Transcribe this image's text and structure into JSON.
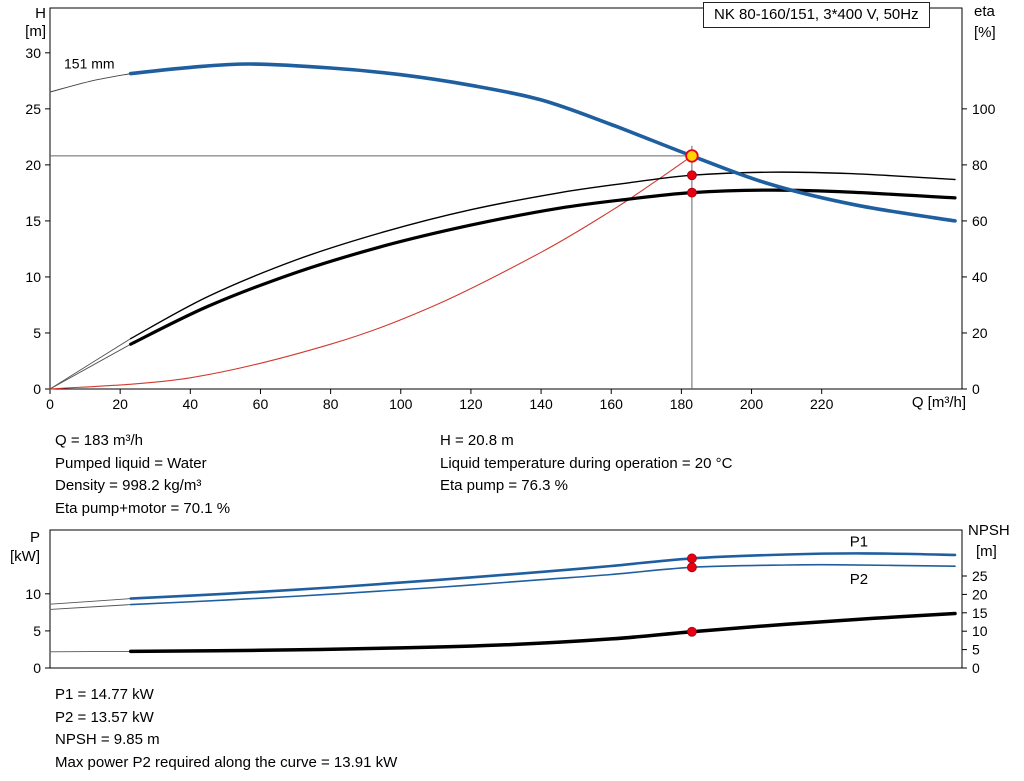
{
  "title": "NK 80-160/151, 3*400 V, 50Hz",
  "results_top": {
    "left": [
      "Q = 183 m³/h",
      "Pumped liquid = Water",
      "Density = 998.2 kg/m³",
      "Eta pump+motor = 70.1 %"
    ],
    "right": [
      "H = 20.8 m",
      "Liquid temperature during operation = 20 °C",
      "Eta pump = 76.3 %"
    ]
  },
  "results_bottom": [
    "P1 = 14.77 kW",
    "P2 = 13.57 kW",
    "NPSH = 9.85 m",
    "Max power P2 required along the curve = 13.91 kW"
  ],
  "operating_point": {
    "Q": 183,
    "H": 20.8,
    "eta_pump": 76.3,
    "eta_pump_motor": 70.1,
    "P1": 14.77,
    "P2": 13.57,
    "NPSH": 9.85
  },
  "chart_data": [
    {
      "id": "qh-eta",
      "type": "line",
      "title": "NK 80-160/151, 3*400 V, 50Hz",
      "x": {
        "label": "Q [m³/h]",
        "min": 0,
        "max": 260,
        "ticks": [
          0,
          20,
          40,
          60,
          80,
          100,
          120,
          140,
          160,
          180,
          200,
          220
        ]
      },
      "y_left": {
        "label_lines": [
          "H",
          "[m]"
        ],
        "min": 0,
        "max": 34,
        "ticks": [
          0,
          5,
          10,
          15,
          20,
          25,
          30
        ]
      },
      "y_right": {
        "label_lines": [
          "eta",
          "[%]"
        ],
        "min": 0,
        "max": 136,
        "ticks": [
          0,
          20,
          40,
          60,
          80,
          100
        ]
      },
      "series": [
        {
          "name": "head-curve-lead",
          "axis": "left",
          "color": "#444444",
          "width": 1,
          "points": [
            [
              0,
              26.5
            ],
            [
              12,
              27.5
            ],
            [
              23,
              28.15
            ]
          ]
        },
        {
          "name": "eta-pump-lead",
          "axis": "right",
          "color": "#555555",
          "width": 0.9,
          "points": [
            [
              0,
              0
            ],
            [
              23,
              18
            ]
          ]
        },
        {
          "name": "eta-pump-motor-lead",
          "axis": "right",
          "color": "#555555",
          "width": 0.9,
          "points": [
            [
              0,
              0
            ],
            [
              23,
              16
            ]
          ]
        },
        {
          "name": "system-curve",
          "axis": "left",
          "color": "#d03a2f",
          "width": 1.1,
          "points": [
            [
              0,
              0
            ],
            [
              40,
              1.0
            ],
            [
              80,
              4.0
            ],
            [
              110,
              7.5
            ],
            [
              140,
              12.2
            ],
            [
              160,
              15.9
            ],
            [
              172,
              18.4
            ],
            [
              183,
              20.8
            ]
          ]
        },
        {
          "name": "eta-pump-curve",
          "axis": "right",
          "color": "#000000",
          "width": 1.4,
          "points": [
            [
              23,
              18
            ],
            [
              45,
              33
            ],
            [
              70,
              46
            ],
            [
              95,
              56
            ],
            [
              120,
              64
            ],
            [
              145,
              70
            ],
            [
              165,
              73.6
            ],
            [
              183,
              76.3
            ],
            [
              205,
              77.4
            ],
            [
              228,
              76.9
            ],
            [
              258,
              74.8
            ]
          ]
        },
        {
          "name": "eta-pump-motor-curve",
          "axis": "right",
          "color": "#000000",
          "width": 3.2,
          "points": [
            [
              23,
              16
            ],
            [
              45,
              29.5
            ],
            [
              70,
              41.5
            ],
            [
              95,
              51
            ],
            [
              120,
              58.5
            ],
            [
              145,
              64.5
            ],
            [
              165,
              67.8
            ],
            [
              183,
              70.1
            ],
            [
              205,
              71.0
            ],
            [
              228,
              70.3
            ],
            [
              258,
              68.2
            ]
          ]
        },
        {
          "name": "head-curve-151mm",
          "axis": "left",
          "color": "#1f5fa0",
          "width": 3.6,
          "points": [
            [
              23,
              28.15
            ],
            [
              40,
              28.7
            ],
            [
              57,
              29.0
            ],
            [
              80,
              28.65
            ],
            [
              100,
              28.05
            ],
            [
              120,
              27.1
            ],
            [
              140,
              25.8
            ],
            [
              160,
              23.6
            ],
            [
              183,
              20.8
            ],
            [
              205,
              18.3
            ],
            [
              230,
              16.4
            ],
            [
              258,
              15.0
            ]
          ]
        }
      ],
      "guides": [
        {
          "dir": "h",
          "at": 20.8,
          "from": 0,
          "to": 183
        },
        {
          "dir": "v",
          "at": 183,
          "from": 0,
          "to": 21.7
        }
      ],
      "markers": [
        {
          "name": "eta-pump-point",
          "x": 183,
          "value": 76.3,
          "axis": "right",
          "r": 4.5,
          "fill": "#e60012",
          "stroke": "#a00010",
          "sw": 0.8,
          "interactable": false
        },
        {
          "name": "eta-pump-motor-point",
          "x": 183,
          "value": 70.1,
          "axis": "right",
          "r": 4.5,
          "fill": "#e60012",
          "stroke": "#a00010",
          "sw": 0.8,
          "interactable": false
        },
        {
          "name": "duty-point",
          "x": 183,
          "value": 20.8,
          "axis": "left",
          "r": 5.8,
          "fill": "#ffd400",
          "stroke": "#e8001c",
          "sw": 1.8,
          "interactable": true
        }
      ],
      "labels": [
        {
          "name": "impeller-size-label",
          "text": "151 mm",
          "x": 4,
          "value": 28.6,
          "axis": "left",
          "color": "#000000",
          "size": 14,
          "anchor": "start"
        }
      ]
    },
    {
      "id": "power-npsh",
      "type": "line",
      "title": "",
      "x": {
        "label": "",
        "min": 0,
        "max": 260,
        "ticks": []
      },
      "y_left": {
        "label_lines": [
          "P",
          "[kW]"
        ],
        "min": 0,
        "max": 18.6,
        "ticks": [
          0,
          5,
          10
        ]
      },
      "y_right": {
        "label_lines": [
          "NPSH",
          "[m]"
        ],
        "min": 0,
        "max": 37.5,
        "ticks": [
          0,
          5,
          10,
          15,
          20,
          25
        ]
      },
      "series": [
        {
          "name": "p1-curve-lead",
          "axis": "left",
          "color": "#555555",
          "width": 0.9,
          "points": [
            [
              0,
              8.6
            ],
            [
              23,
              9.35
            ]
          ]
        },
        {
          "name": "p2-curve-lead",
          "axis": "left",
          "color": "#555555",
          "width": 0.9,
          "points": [
            [
              0,
              7.9
            ],
            [
              23,
              8.55
            ]
          ]
        },
        {
          "name": "npsh-curve-lead",
          "axis": "right",
          "color": "#555555",
          "width": 0.9,
          "points": [
            [
              0,
              4.4
            ],
            [
              23,
              4.5
            ]
          ]
        },
        {
          "name": "p1-curve",
          "axis": "left",
          "color": "#1f5fa0",
          "width": 2.6,
          "points": [
            [
              23,
              9.35
            ],
            [
              50,
              10.0
            ],
            [
              80,
              10.85
            ],
            [
              110,
              11.85
            ],
            [
              140,
              12.95
            ],
            [
              160,
              13.75
            ],
            [
              183,
              14.77
            ],
            [
              210,
              15.3
            ],
            [
              232,
              15.45
            ],
            [
              258,
              15.25
            ]
          ]
        },
        {
          "name": "p2-curve",
          "axis": "left",
          "color": "#1f5fa0",
          "width": 1.6,
          "points": [
            [
              23,
              8.55
            ],
            [
              50,
              9.15
            ],
            [
              80,
              9.95
            ],
            [
              110,
              10.85
            ],
            [
              140,
              11.9
            ],
            [
              160,
              12.6
            ],
            [
              183,
              13.57
            ],
            [
              210,
              13.88
            ],
            [
              225,
              13.91
            ],
            [
              258,
              13.72
            ]
          ]
        },
        {
          "name": "npsh-curve",
          "axis": "right",
          "color": "#000000",
          "width": 3.5,
          "points": [
            [
              23,
              4.5
            ],
            [
              60,
              4.8
            ],
            [
              100,
              5.45
            ],
            [
              130,
              6.3
            ],
            [
              160,
              7.9
            ],
            [
              183,
              9.85
            ],
            [
              210,
              11.9
            ],
            [
              235,
              13.5
            ],
            [
              258,
              14.8
            ]
          ]
        }
      ],
      "guides": [],
      "markers": [
        {
          "name": "p1-point",
          "x": 183,
          "value": 14.77,
          "axis": "left",
          "r": 4.5,
          "fill": "#e60012",
          "stroke": "#a00010",
          "sw": 0.8,
          "interactable": false
        },
        {
          "name": "p2-point",
          "x": 183,
          "value": 13.57,
          "axis": "left",
          "r": 4.5,
          "fill": "#e60012",
          "stroke": "#a00010",
          "sw": 0.8,
          "interactable": false
        },
        {
          "name": "npsh-point",
          "x": 183,
          "value": 9.85,
          "axis": "right",
          "r": 4.5,
          "fill": "#e60012",
          "stroke": "#a00010",
          "sw": 0.8,
          "interactable": false
        }
      ],
      "labels": [
        {
          "name": "p1-curve-label",
          "text": "P1",
          "x": 228,
          "value": 16.4,
          "axis": "left",
          "color": "#1f5fa0",
          "size": 15,
          "anchor": "start"
        },
        {
          "name": "p2-curve-label",
          "text": "P2",
          "x": 228,
          "value": 11.3,
          "axis": "left",
          "color": "#1f5fa0",
          "size": 15,
          "anchor": "start"
        }
      ]
    }
  ]
}
